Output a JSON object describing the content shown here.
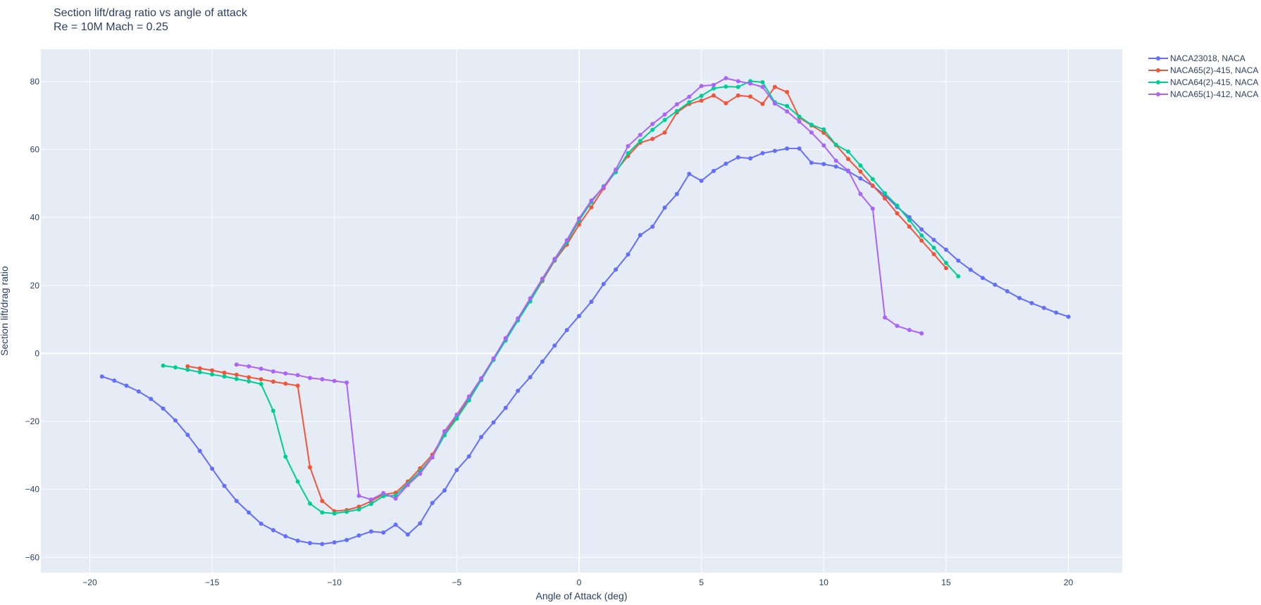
{
  "chart_data": {
    "type": "line",
    "title": "Section lift/drag ratio vs angle of attack",
    "subtitle": "Re = 10M Mach = 0.25",
    "xlabel": "Angle of Attack (deg)",
    "ylabel": "Section lift/drag ratio",
    "xlim": [
      -22,
      22.2
    ],
    "ylim": [
      -64.5,
      89.5
    ],
    "xticks": [
      -20,
      -15,
      -10,
      -5,
      0,
      5,
      10,
      15,
      20
    ],
    "xtick_labels": [
      "−20",
      "−15",
      "−10",
      "−5",
      "0",
      "5",
      "10",
      "15",
      "20"
    ],
    "yticks": [
      -60,
      -40,
      -20,
      0,
      20,
      40,
      60,
      80
    ],
    "ytick_labels": [
      "−60",
      "−40",
      "−20",
      "0",
      "20",
      "40",
      "60",
      "80"
    ],
    "grid": true,
    "legend_position": "top-right-outside",
    "plot_background": "#e5ecf6",
    "series": [
      {
        "name": "NACA23018, NACA",
        "color": "#636efa",
        "x": [
          -19.5,
          -19,
          -18.5,
          -18,
          -17.5,
          -17,
          -16.5,
          -16,
          -15.5,
          -15,
          -14.5,
          -14,
          -13.5,
          -13,
          -12.5,
          -12,
          -11.5,
          -11,
          -10.5,
          -10,
          -9.5,
          -9,
          -8.5,
          -8,
          -7.5,
          -7,
          -6.5,
          -6,
          -5.5,
          -5,
          -4.5,
          -4,
          -3.5,
          -3,
          -2.5,
          -2,
          -1.5,
          -1,
          -0.5,
          0,
          0.5,
          1,
          1.5,
          2,
          2.5,
          3,
          3.5,
          4,
          4.5,
          5,
          5.5,
          6,
          6.5,
          7,
          7.5,
          8,
          8.5,
          9,
          9.5,
          10,
          10.5,
          11,
          11.5,
          12,
          12.5,
          13,
          13.5,
          14,
          14.5,
          15,
          15.5,
          16,
          16.5,
          17,
          17.5,
          18,
          18.5,
          19,
          19.5,
          20
        ],
        "y": [
          -6.8,
          -8,
          -9.5,
          -11.2,
          -13.4,
          -16.2,
          -19.7,
          -24,
          -28.7,
          -33.9,
          -39,
          -43.4,
          -46.8,
          -50.1,
          -52,
          -53.8,
          -55.1,
          -55.8,
          -56.1,
          -55.6,
          -54.9,
          -53.6,
          -52.4,
          -52.7,
          -50.4,
          -53.3,
          -50,
          -44,
          -40.3,
          -34.3,
          -30.3,
          -24.6,
          -20.3,
          -16,
          -11,
          -7,
          -2.4,
          2.3,
          6.9,
          11,
          15.2,
          20.4,
          24.7,
          29.1,
          34.8,
          37.3,
          42.9,
          46.9,
          52.8,
          50.8,
          53.7,
          55.8,
          57.7,
          57.4,
          58.9,
          59.6,
          60.3,
          60.3,
          56.1,
          55.7,
          55,
          53.6,
          51.5,
          49.3,
          46.5,
          43.1,
          40.1,
          36.5,
          33.4,
          30.5,
          27.3,
          24.6,
          22.2,
          20.2,
          18.3,
          16.3,
          14.8,
          13.4,
          12,
          10.8
        ]
      },
      {
        "name": "NACA65(2)-415, NACA",
        "color": "#ef553b",
        "x": [
          -16,
          -15.5,
          -15,
          -14.5,
          -14,
          -13.5,
          -13,
          -12.5,
          -12,
          -11.5,
          -11,
          -10.5,
          -10,
          -9.5,
          -9,
          -8.5,
          -8,
          -7.5,
          -7,
          -6.5,
          -6,
          -5.5,
          -5,
          -4.5,
          -4,
          -3.5,
          -3,
          -2.5,
          -2,
          -1.5,
          -1,
          -0.5,
          0,
          0.5,
          1,
          1.5,
          2,
          2.5,
          3,
          3.5,
          4,
          4.5,
          5,
          5.5,
          6,
          6.5,
          7,
          7.5,
          8,
          8.5,
          9,
          9.5,
          10,
          10.5,
          11,
          11.5,
          12,
          12.5,
          13,
          13.5,
          14,
          14.5,
          15
        ],
        "y": [
          -3.8,
          -4.4,
          -5,
          -5.7,
          -6.3,
          -7,
          -7.6,
          -8.3,
          -8.9,
          -9.5,
          -33.5,
          -43.4,
          -46.4,
          -46.1,
          -45.1,
          -43.5,
          -41.5,
          -41,
          -37.7,
          -33.8,
          -29.8,
          -23.7,
          -18.5,
          -13.3,
          -7.8,
          -1.8,
          4.3,
          9.8,
          15.4,
          21.3,
          27.3,
          32,
          37.9,
          43,
          48.6,
          53.6,
          58.1,
          62,
          63.1,
          65,
          70.9,
          73.4,
          74.4,
          75.9,
          73.6,
          75.9,
          75.6,
          73.4,
          78.4,
          76.9,
          69.4,
          67.1,
          64.9,
          61.3,
          57.2,
          53.5,
          49.4,
          45.6,
          41.2,
          37.3,
          33.2,
          29.2,
          25.1
        ]
      },
      {
        "name": "NACA64(2)-415, NACA",
        "color": "#00cc96",
        "x": [
          -17,
          -16.5,
          -16,
          -15.5,
          -15,
          -14.5,
          -14,
          -13.5,
          -13,
          -12.5,
          -12,
          -11.5,
          -11,
          -10.5,
          -10,
          -9.5,
          -9,
          -8.5,
          -8,
          -7.5,
          -7,
          -6.5,
          -6,
          -5.5,
          -5,
          -4.5,
          -4,
          -3.5,
          -3,
          -2.5,
          -2,
          -1.5,
          -1,
          -0.5,
          0,
          0.5,
          1,
          1.5,
          2,
          2.5,
          3,
          3.5,
          4,
          4.5,
          5,
          5.5,
          6,
          6.5,
          7,
          7.5,
          8,
          8.5,
          9,
          9.5,
          10,
          10.5,
          11,
          11.5,
          12,
          12.5,
          13,
          13.5,
          14,
          14.5,
          15,
          15.5
        ],
        "y": [
          -3.6,
          -4.1,
          -4.8,
          -5.5,
          -6.2,
          -6.8,
          -7.5,
          -8.2,
          -9,
          -16.9,
          -30.4,
          -37.7,
          -44.2,
          -46.8,
          -47.1,
          -46.6,
          -45.9,
          -44.3,
          -42,
          -41.8,
          -38.3,
          -34.7,
          -30.5,
          -24.1,
          -19.2,
          -13.8,
          -7.8,
          -1.9,
          3.8,
          9.7,
          15.3,
          21.6,
          27.5,
          32.7,
          39.1,
          44.5,
          49.2,
          53.3,
          58.9,
          62.5,
          65.8,
          68.7,
          71.3,
          73.9,
          75.8,
          78,
          78.5,
          78.4,
          80.1,
          79.8,
          73.9,
          72.8,
          69.7,
          67.3,
          65.9,
          61.4,
          59.4,
          55.3,
          51.3,
          47.1,
          43.5,
          39.2,
          34.7,
          31.1,
          26.6,
          22.7
        ]
      },
      {
        "name": "NACA65(1)-412, NACA",
        "color": "#ab63fa",
        "x": [
          -14,
          -13.5,
          -13,
          -12.5,
          -12,
          -11.5,
          -11,
          -10.5,
          -10,
          -9.5,
          -9,
          -8.5,
          -8,
          -7.5,
          -7,
          -6.5,
          -6,
          -5.5,
          -5,
          -4.5,
          -4,
          -3.5,
          -3,
          -2.5,
          -2,
          -1.5,
          -1,
          -0.5,
          0,
          0.5,
          1,
          1.5,
          2,
          2.5,
          3,
          3.5,
          4,
          4.5,
          5,
          5.5,
          6,
          6.5,
          7,
          7.5,
          8,
          8.5,
          9,
          9.5,
          10,
          10.5,
          11,
          11.5,
          12,
          12.5,
          13,
          13.5,
          14
        ],
        "y": [
          -3.3,
          -3.8,
          -4.5,
          -5.3,
          -5.9,
          -6.4,
          -7.2,
          -7.6,
          -8.1,
          -8.6,
          -41.9,
          -43,
          -41.1,
          -42.7,
          -38.7,
          -35.4,
          -30.6,
          -22.9,
          -18,
          -12.7,
          -7.3,
          -1.5,
          4.5,
          10.3,
          16.2,
          22,
          27.8,
          33.3,
          39.7,
          45,
          48.9,
          54.1,
          61,
          64.3,
          67.5,
          70.3,
          73.3,
          75.5,
          78.7,
          79,
          81,
          80.1,
          79.4,
          78.4,
          73.5,
          71.2,
          68.2,
          65,
          61.2,
          56.7,
          53.8,
          46.9,
          42.6,
          10.6,
          8.1,
          6.9,
          5.9
        ]
      }
    ]
  }
}
